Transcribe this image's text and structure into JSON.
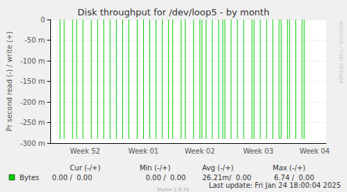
{
  "chart_data": {
    "type": "bar",
    "title": "Disk throughput for /dev/loop5 - by month",
    "y_label": "Pr second read (-) / write (+)",
    "categories": [
      null,
      null,
      null,
      null,
      null,
      null,
      null,
      null,
      null,
      null,
      null,
      null,
      null,
      null,
      null,
      null,
      "Week 52",
      null,
      null,
      null,
      null,
      null,
      null,
      null,
      null,
      null,
      null,
      null,
      null,
      null,
      null,
      null,
      null,
      null,
      null,
      null,
      null,
      null,
      null,
      null,
      null,
      null,
      null,
      null,
      "Week 01",
      null,
      null,
      null,
      null,
      null,
      null,
      null,
      null,
      null,
      null,
      null,
      null,
      null,
      null,
      null,
      null,
      null,
      null,
      null,
      null,
      null,
      null,
      null,
      null,
      null,
      null,
      "Week 02",
      null,
      null,
      null,
      null,
      null,
      null,
      null,
      null,
      null,
      null,
      null,
      null,
      null,
      null,
      null,
      null,
      null,
      null,
      null,
      null,
      null,
      null,
      null,
      null,
      null,
      null,
      null,
      "Week 03",
      null,
      null,
      null,
      null,
      null,
      null,
      null,
      null,
      null,
      null,
      null,
      null,
      null,
      null,
      null,
      null,
      null,
      null,
      null,
      null,
      null,
      null,
      null,
      null,
      null,
      null,
      "Week 04",
      null,
      null,
      null,
      null,
      null
    ],
    "series": [
      {
        "name": "Bytes",
        "color": "#00cc00",
        "values": [
          0,
          0,
          0,
          0,
          -0.29,
          0,
          -0.29,
          0,
          0,
          0,
          -0.29,
          0,
          -0.29,
          0,
          0,
          -0.29,
          0,
          0,
          0,
          -0.29,
          0,
          0,
          -0.29,
          0,
          0,
          -0.29,
          0,
          0,
          -0.29,
          0,
          0,
          -0.29,
          0,
          0,
          -0.29,
          0,
          0,
          -0.29,
          0,
          0,
          0,
          -0.29,
          0,
          0,
          -0.29,
          0,
          0,
          -0.29,
          0,
          0,
          -0.29,
          0,
          0,
          -0.29,
          0,
          0,
          -0.29,
          0,
          -0.29,
          0,
          0,
          0,
          -0.29,
          0,
          -0.29,
          0,
          0,
          0,
          -0.29,
          0,
          0,
          -0.29,
          -0.29,
          0,
          -0.29,
          0,
          0,
          -0.29,
          0,
          0,
          -0.29,
          0,
          -0.29,
          -0.29,
          0,
          0,
          -0.29,
          0,
          0,
          -0.29,
          0,
          0,
          -0.29,
          0,
          0,
          0,
          -0.29,
          -0.29,
          0,
          0,
          -0.29,
          0,
          0,
          -0.29,
          0,
          0,
          -0.29,
          0,
          0,
          -0.29,
          -0.29,
          0,
          0,
          -0.29,
          -0.29,
          0,
          0,
          -0.29,
          0,
          0,
          -0.29,
          -0.29,
          0,
          0,
          0,
          0,
          0,
          0,
          0,
          0,
          0,
          0
        ]
      }
    ],
    "ylim": [
      -0.3,
      0
    ],
    "yticks": [
      {
        "value": -0.3,
        "label": "-300 m"
      },
      {
        "value": -0.25,
        "label": "-250 m"
      },
      {
        "value": -0.2,
        "label": "-200 m"
      },
      {
        "value": -0.15,
        "label": "-150 m"
      },
      {
        "value": -0.1,
        "label": "-100 m"
      },
      {
        "value": -0.05,
        "label": "-50 m"
      },
      0
    ],
    "grid": true,
    "legend_table": {
      "columns": [
        "Cur (-/+)",
        "Min (-/+)",
        "Avg (-/+)",
        "Max (-/+)"
      ],
      "rows": [
        {
          "name": "Bytes",
          "color": "#00cc00",
          "cells": [
            "0.00 /  0.00",
            "0.00 /  0.00",
            "26.21m/  0.00",
            "6.74 /  0.00"
          ]
        }
      ]
    },
    "last_update": "Last update: Fri Jan 24 18:00:04 2025",
    "credit": "Munin 2.0.75",
    "watermark": "RRDTOOL / TOBI OETIKER"
  }
}
